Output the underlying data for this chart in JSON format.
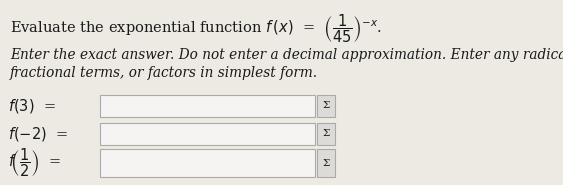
{
  "background_color": "#ede9e3",
  "text_color": "#1a1a1a",
  "box_color": "#f5f4f2",
  "box_edge_color": "#aaaaaa",
  "sigma_box_color": "#dddbd7",
  "sigma_box_edge": "#aaaaaa",
  "sigma_label": "Σ",
  "title_fontsize": 10.5,
  "instruction_fontsize": 9.8,
  "label_fontsize": 10.5,
  "row_label_fontsize": 10.5
}
